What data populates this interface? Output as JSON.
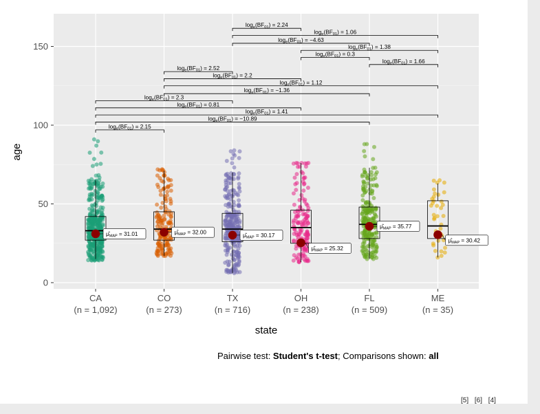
{
  "chart_data": {
    "type": "box-violin-jitter",
    "xlabel": "state",
    "ylabel": "age",
    "ylim": [
      0,
      168
    ],
    "yticks": [
      0,
      50,
      100,
      150
    ],
    "grid": true,
    "categories": [
      "CA",
      "CO",
      "TX",
      "OH",
      "FL",
      "ME"
    ],
    "category_counts": [
      "(n = 1,092)",
      "(n = 273)",
      "(n = 716)",
      "(n = 238)",
      "(n = 509)",
      "(n = 35)"
    ],
    "colors": [
      "#1b9e77",
      "#d95f02",
      "#7570b3",
      "#e7298a",
      "#66a61e",
      "#e6ab02"
    ],
    "boxes": [
      {
        "q1": 27,
        "median": 33,
        "q3": 42,
        "wlow": 15,
        "whigh": 65,
        "min": 14,
        "max": 91
      },
      {
        "q1": 27,
        "median": 34,
        "q3": 45,
        "wlow": 17,
        "whigh": 71,
        "min": 17,
        "max": 72
      },
      {
        "q1": 26,
        "median": 34,
        "q3": 44,
        "wlow": 6,
        "whigh": 70,
        "min": 6,
        "max": 84
      },
      {
        "q1": 25,
        "median": 35,
        "q3": 46,
        "wlow": 13,
        "whigh": 76,
        "min": 13,
        "max": 76
      },
      {
        "q1": 28,
        "median": 37,
        "q3": 48,
        "wlow": 15,
        "whigh": 73,
        "min": 15,
        "max": 88
      },
      {
        "q1": 28,
        "median": 36,
        "q3": 52,
        "wlow": 16,
        "whigh": 63,
        "min": 16,
        "max": 65
      }
    ],
    "map_estimates": [
      {
        "value": 31.01,
        "label": "= 31.01"
      },
      {
        "value": 32.0,
        "label": "= 32.00"
      },
      {
        "value": 30.17,
        "label": "= 30.17"
      },
      {
        "value": 25.32,
        "label": "= 25.32"
      },
      {
        "value": 35.77,
        "label": "= 35.77"
      },
      {
        "value": 30.42,
        "label": "= 30.42"
      }
    ],
    "map_symbol": "μ̂",
    "map_subscript": "MAP",
    "pairwise": [
      {
        "from": "CA",
        "to": "CO",
        "y": 97,
        "label": "= 2.15"
      },
      {
        "from": "CA",
        "to": "TX",
        "y": 115.5,
        "label": "= 2.3"
      },
      {
        "from": "CA",
        "to": "OH",
        "y": 111,
        "label": "= 0.81"
      },
      {
        "from": "CA",
        "to": "FL",
        "y": 102,
        "label": "= −10.89"
      },
      {
        "from": "CA",
        "to": "ME",
        "y": 106.5,
        "label": "= 1.41"
      },
      {
        "from": "CO",
        "to": "TX",
        "y": 134,
        "label": "= 2.52"
      },
      {
        "from": "CO",
        "to": "OH",
        "y": 129.5,
        "label": "= 2.2"
      },
      {
        "from": "CO",
        "to": "FL",
        "y": 120,
        "label": "= −1.36"
      },
      {
        "from": "CO",
        "to": "ME",
        "y": 125,
        "label": "= 1.12"
      },
      {
        "from": "TX",
        "to": "OH",
        "y": 161.5,
        "label": "= 2.24"
      },
      {
        "from": "TX",
        "to": "FL",
        "y": 152,
        "label": "= −4.63"
      },
      {
        "from": "TX",
        "to": "ME",
        "y": 157,
        "label": "= 1.06"
      },
      {
        "from": "OH",
        "to": "FL",
        "y": 143,
        "label": "= 0.3"
      },
      {
        "from": "OH",
        "to": "ME",
        "y": 147.5,
        "label": "= 1.38"
      },
      {
        "from": "FL",
        "to": "ME",
        "y": 138.5,
        "label": "= 1.66"
      }
    ],
    "bf_prefix": "log",
    "bf_sub_e": "e",
    "bf_term": "(BF",
    "bf_sub": "01",
    "bf_close": ")"
  },
  "caption": {
    "prefix": "Pairwise test: ",
    "test": "Student's t-test",
    "middle": "; Comparisons shown: ",
    "shown": "all"
  },
  "refs": "[5] [6] [4]"
}
